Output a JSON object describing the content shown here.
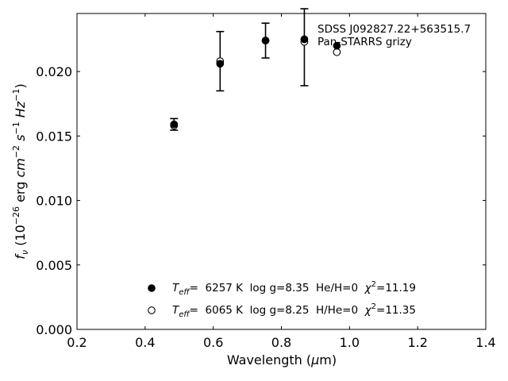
{
  "chart_data": {
    "type": "scatter",
    "annotation": [
      "SDSS J092827.22+563515.7",
      "Pan-STARRS grizy"
    ],
    "xlabel": "Wavelength (μm)",
    "ylabel": "f_ν (10^-26 erg cm^-2 s^-1 Hz^-1)",
    "xlim": [
      0.2,
      1.4
    ],
    "ylim": [
      0.0,
      0.0245
    ],
    "xticks": [
      0.2,
      0.4,
      0.6,
      0.8,
      1.0,
      1.2,
      1.4
    ],
    "xtick_labels": [
      "0.2",
      "0.4",
      "0.6",
      "0.8",
      "1.0",
      "1.2",
      "1.4"
    ],
    "yticks": [
      0.0,
      0.005,
      0.01,
      0.015,
      0.02
    ],
    "ytick_labels": [
      "0.000",
      "0.005",
      "0.010",
      "0.015",
      "0.020"
    ],
    "grid": false,
    "legend_position": "lower center",
    "observed": {
      "x": [
        0.4849,
        0.6201,
        0.7535,
        0.8674,
        0.9628
      ],
      "y": [
        0.0159,
        0.0208,
        0.0224,
        0.0224,
        null
      ],
      "yerr": [
        0.00045,
        0.0023,
        0.00135,
        0.0035,
        null
      ]
    },
    "series": [
      {
        "name": "Teff= 6257 K  log g=8.35  He/H=0  χ2=11.19",
        "marker": "filled-circle",
        "x": [
          0.4849,
          0.6201,
          0.7535,
          0.8674,
          0.9628
        ],
        "y": [
          0.0159,
          0.0206,
          0.0224,
          0.0225,
          0.022
        ]
      },
      {
        "name": "Teff= 6065 K  log g=8.25  H/He=0  χ2=11.35",
        "marker": "open-circle",
        "x": [
          0.4849,
          0.6201,
          0.7535,
          0.8674,
          0.9628
        ],
        "y": [
          0.0158,
          0.0208,
          0.0224,
          0.0223,
          0.0215
        ]
      }
    ],
    "legend": [
      {
        "teff_label": "T",
        "teff_sub": "eff",
        "rest": "=  6257 K  log g=8.35  He/H=0  ",
        "chi": "χ",
        "chi_sup": "2",
        "chi_val": "=11.19"
      },
      {
        "teff_label": "T",
        "teff_sub": "eff",
        "rest": "=  6065 K  log g=8.25  H/He=0  ",
        "chi": "χ",
        "chi_sup": "2",
        "chi_val": "=11.35"
      }
    ]
  }
}
